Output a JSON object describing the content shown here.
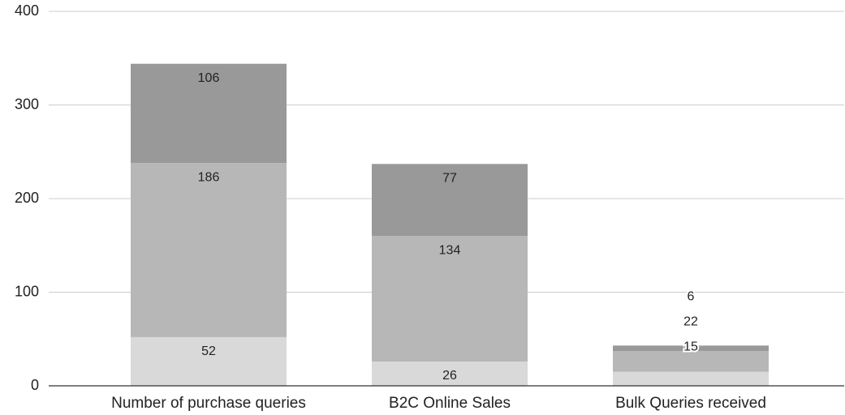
{
  "chart_data": {
    "type": "bar",
    "stacked": true,
    "categories": [
      "Number of purchase queries",
      "B2C Online Sales",
      "Bulk Queries received"
    ],
    "series": [
      {
        "color": "#d9d9d9",
        "values": [
          52,
          26,
          15
        ]
      },
      {
        "color": "#b7b7b7",
        "values": [
          186,
          134,
          22
        ]
      },
      {
        "color": "#999999",
        "values": [
          106,
          77,
          6
        ]
      }
    ],
    "ylim": [
      0,
      400
    ],
    "yticks": [
      0,
      100,
      200,
      300,
      400
    ],
    "grid": true
  }
}
